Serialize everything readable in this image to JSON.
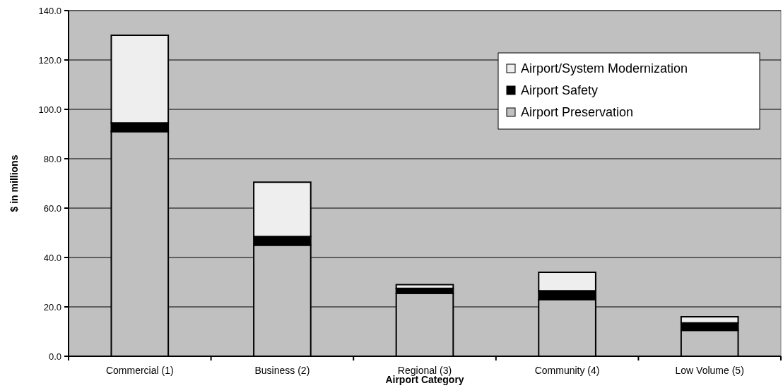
{
  "chart_data": {
    "type": "bar",
    "stacked": true,
    "xlabel": "Airport Category",
    "ylabel": "$ in millions",
    "categories": [
      "Commercial (1)",
      "Business (2)",
      "Regional (3)",
      "Community (4)",
      "Low Volume (5)"
    ],
    "series": [
      {
        "name": "Airport Preservation",
        "color": "#c0c0c0",
        "values": [
          91,
          45,
          25.5,
          23,
          10.5
        ]
      },
      {
        "name": "Airport Safety",
        "color": "#000000",
        "values": [
          3.5,
          3.5,
          2,
          3.5,
          3
        ]
      },
      {
        "name": "Airport/System Modernization",
        "color": "#eeeeee",
        "values": [
          35.5,
          22,
          1.5,
          7.5,
          2.5
        ]
      }
    ],
    "ylim": [
      0,
      140
    ],
    "yticks": [
      {
        "value": 0,
        "label": "0.0"
      },
      {
        "value": 20,
        "label": "20.0"
      },
      {
        "value": 40,
        "label": "40.0"
      },
      {
        "value": 60,
        "label": "60.0"
      },
      {
        "value": 80,
        "label": "80.0"
      },
      {
        "value": 100,
        "label": "100.0"
      },
      {
        "value": 120,
        "label": "120.0"
      },
      {
        "value": 140,
        "label": "140.0"
      }
    ],
    "grid": "y",
    "legend": "top right"
  }
}
